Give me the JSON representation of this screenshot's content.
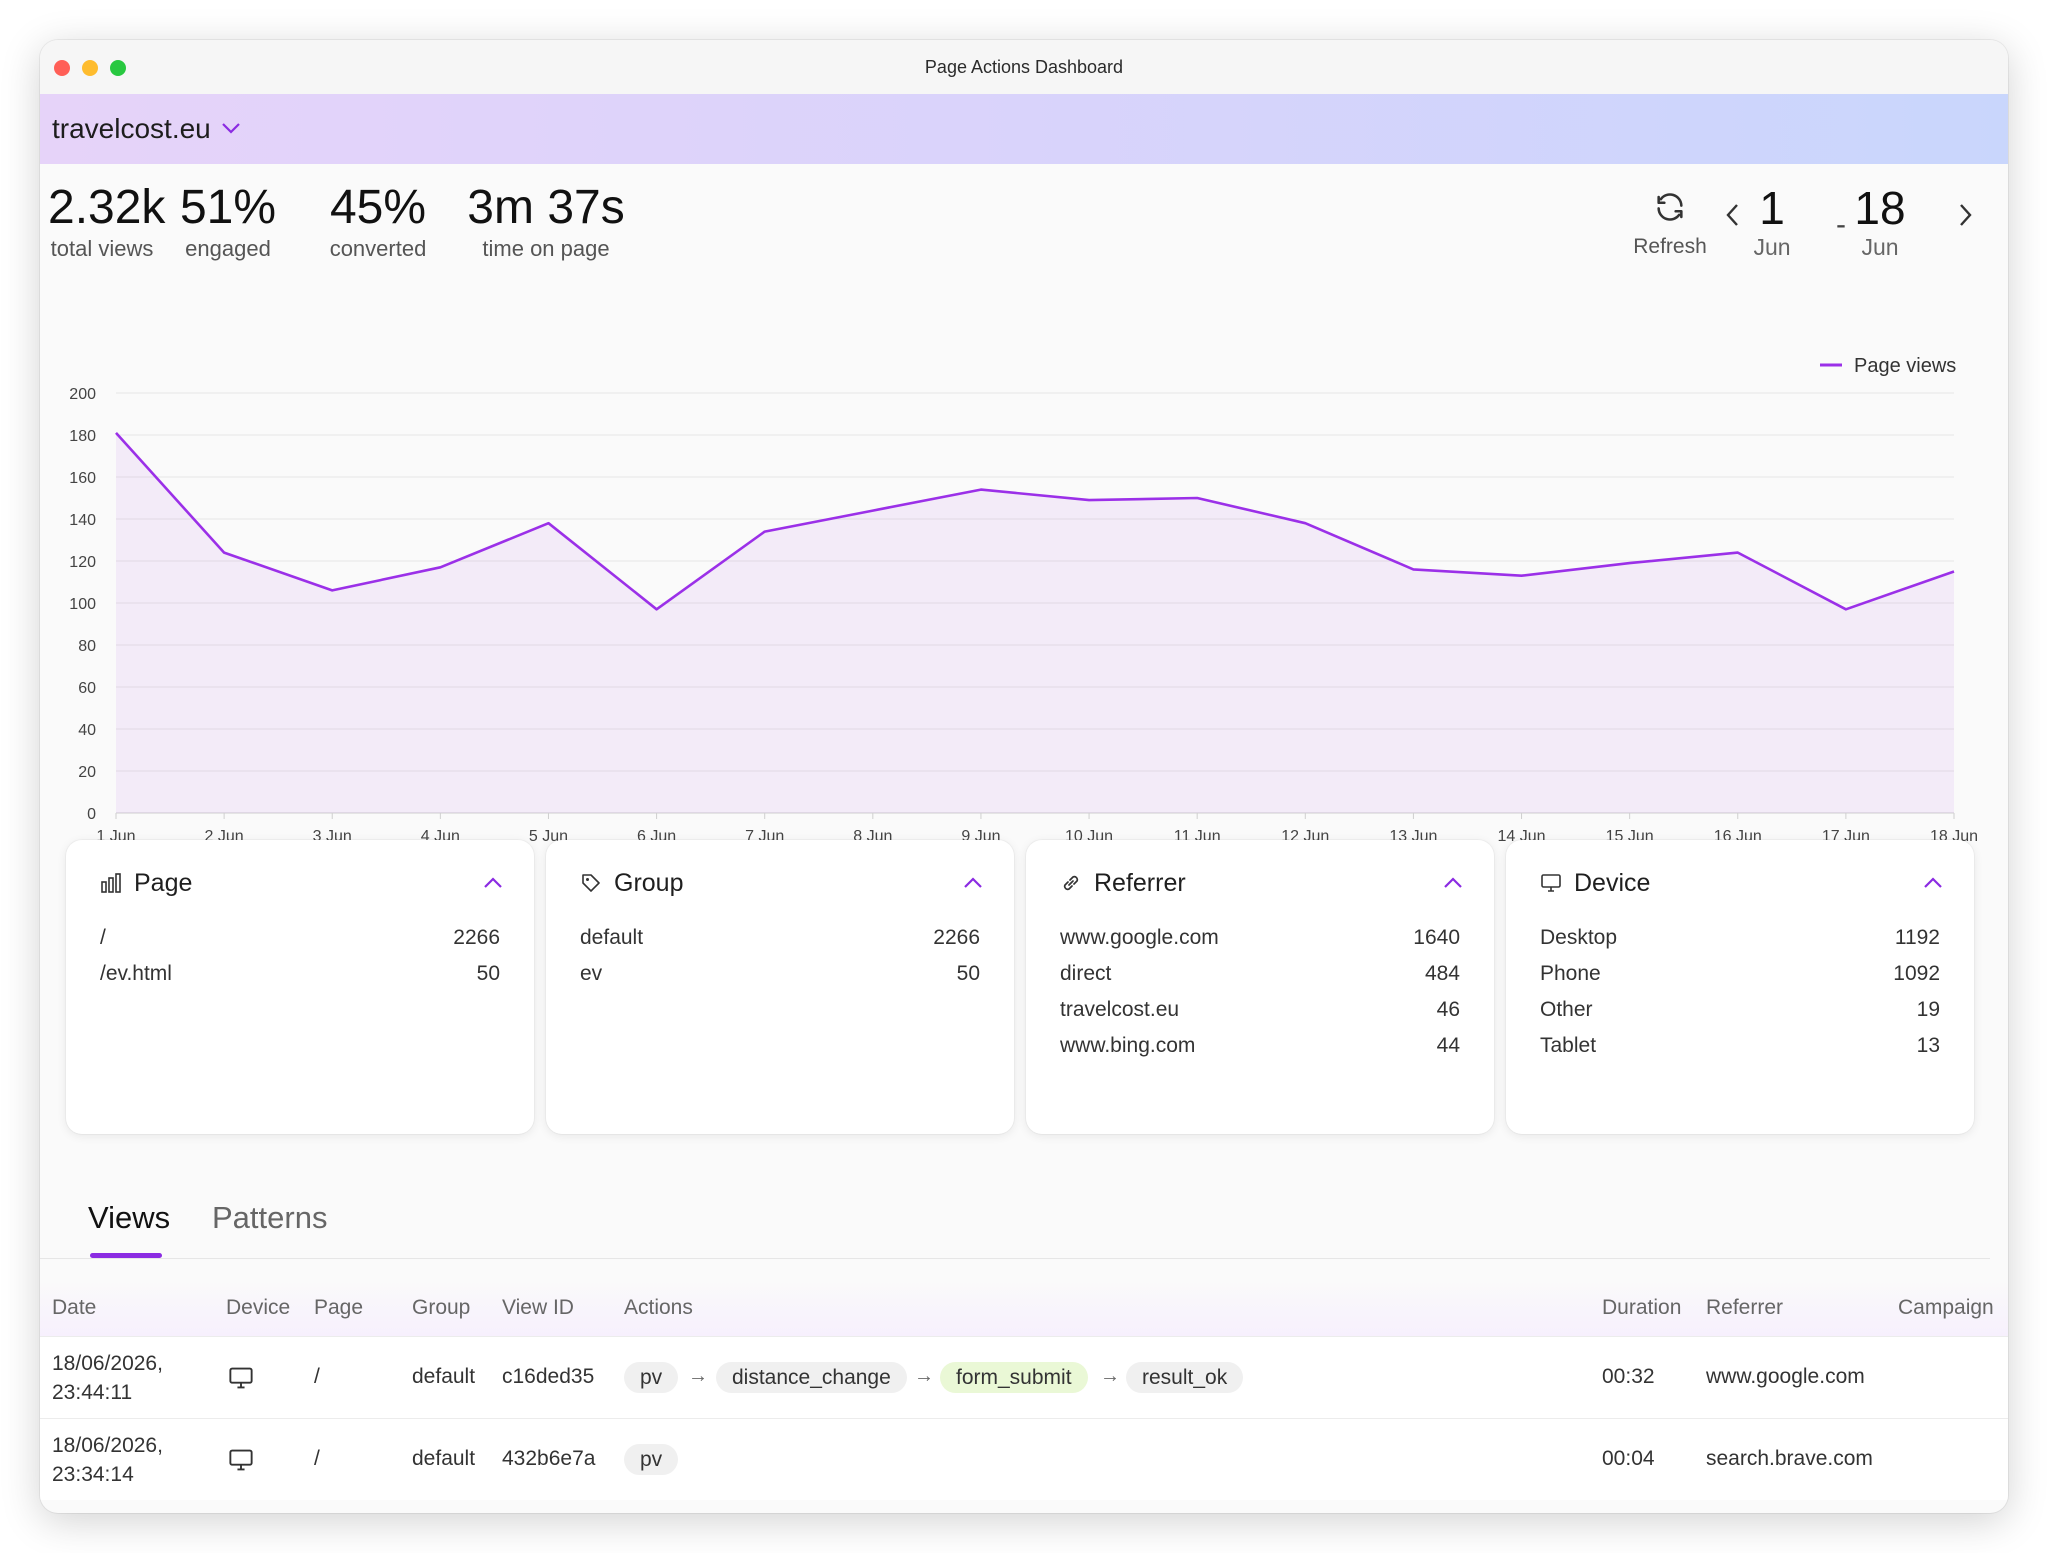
{
  "window": {
    "title": "Page Actions Dashboard"
  },
  "site": {
    "name": "travelcost.eu",
    "dropdown_icon": "chevron-down-icon"
  },
  "stats": [
    {
      "value": "2.32k",
      "label": "total views"
    },
    {
      "value": "51%",
      "label": "engaged"
    },
    {
      "value": "45%",
      "label": "converted"
    },
    {
      "value": "3m 37s",
      "label": "time on page"
    }
  ],
  "controls": {
    "refresh_label": "Refresh",
    "range_start_day": "1",
    "range_start_month": "Jun",
    "range_separator": "-",
    "range_end_day": "18",
    "range_end_month": "Jun"
  },
  "chart_data": {
    "type": "area",
    "categories": [
      "1 Jun",
      "2 Jun",
      "3 Jun",
      "4 Jun",
      "5 Jun",
      "6 Jun",
      "7 Jun",
      "8 Jun",
      "9 Jun",
      "10 Jun",
      "11 Jun",
      "12 Jun",
      "13 Jun",
      "14 Jun",
      "15 Jun",
      "16 Jun",
      "17 Jun",
      "18 Jun"
    ],
    "series": [
      {
        "name": "Page views",
        "values": [
          181,
          124,
          106,
          117,
          138,
          97,
          134,
          144,
          154,
          149,
          150,
          138,
          116,
          113,
          119,
          124,
          97,
          115
        ],
        "color": "#9b30e8"
      }
    ],
    "ylim": [
      0,
      200
    ],
    "yticks": [
      0,
      20,
      40,
      60,
      80,
      100,
      120,
      140,
      160,
      180,
      200
    ],
    "grid": true,
    "legend": "top-right"
  },
  "cards": [
    {
      "title": "Page",
      "icon": "bar-chart-icon",
      "rows": [
        {
          "label": "/",
          "value": "2266"
        },
        {
          "label": "/ev.html",
          "value": "50"
        }
      ]
    },
    {
      "title": "Group",
      "icon": "tag-icon",
      "rows": [
        {
          "label": "default",
          "value": "2266"
        },
        {
          "label": "ev",
          "value": "50"
        }
      ]
    },
    {
      "title": "Referrer",
      "icon": "link-icon",
      "rows": [
        {
          "label": "www.google.com",
          "value": "1640"
        },
        {
          "label": "direct",
          "value": "484"
        },
        {
          "label": "travelcost.eu",
          "value": "46"
        },
        {
          "label": "www.bing.com",
          "value": "44"
        }
      ]
    },
    {
      "title": "Device",
      "icon": "monitor-icon",
      "rows": [
        {
          "label": "Desktop",
          "value": "1192"
        },
        {
          "label": "Phone",
          "value": "1092"
        },
        {
          "label": "Other",
          "value": "19"
        },
        {
          "label": "Tablet",
          "value": "13"
        }
      ]
    }
  ],
  "tabs": {
    "active": "Views",
    "other": "Patterns"
  },
  "table": {
    "columns": [
      "Date",
      "Device",
      "Page",
      "Group",
      "View ID",
      "Actions",
      "Duration",
      "Referrer",
      "Campaign"
    ],
    "rows": [
      {
        "date_line1": "18/06/2026,",
        "date_line2": "23:44:11",
        "device": "desktop-icon",
        "page": "/",
        "group": "default",
        "view_id": "c16ded35",
        "actions": [
          "pv",
          "distance_change",
          "form_submit",
          "result_ok"
        ],
        "duration": "00:32",
        "referrer": "www.google.com",
        "campaign": ""
      },
      {
        "date_line1": "18/06/2026,",
        "date_line2": "23:34:14",
        "device": "desktop-icon",
        "page": "/",
        "group": "default",
        "view_id": "432b6e7a",
        "actions": [
          "pv"
        ],
        "duration": "00:04",
        "referrer": "search.brave.com",
        "campaign": ""
      }
    ]
  }
}
